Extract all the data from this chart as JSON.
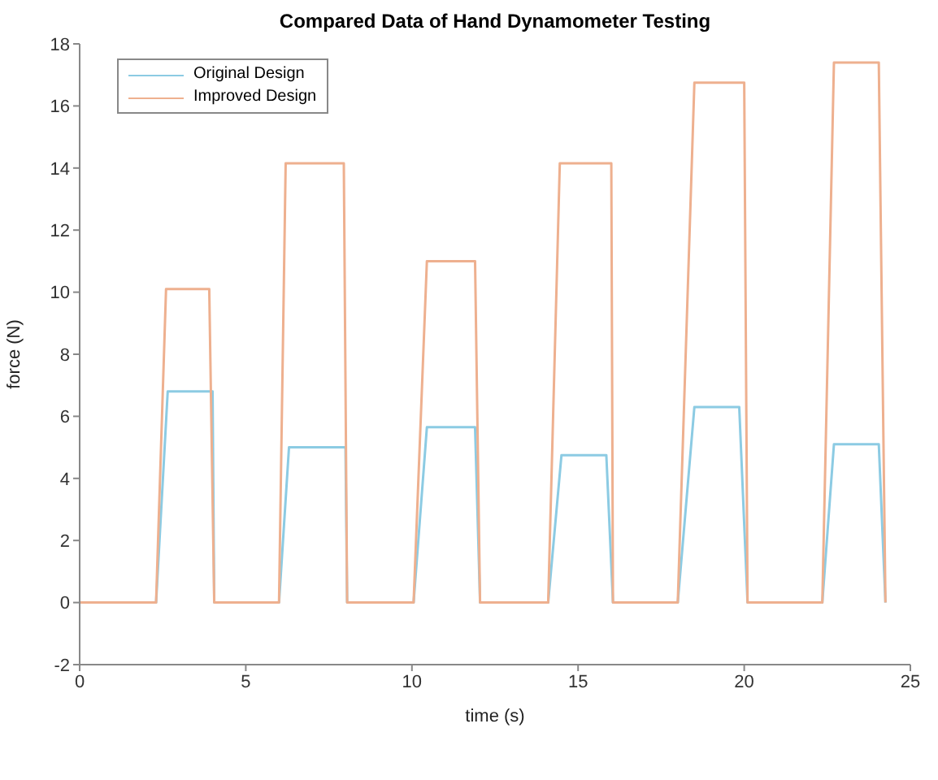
{
  "chart_data": {
    "type": "line",
    "title": "Compared Data of Hand Dynamometer Testing",
    "xlabel": "time (s)",
    "ylabel": "force (N)",
    "xlim": [
      0,
      25
    ],
    "xticks": [
      0,
      5,
      10,
      15,
      20,
      25
    ],
    "ylim": [
      -2,
      18
    ],
    "yticks": [
      -2,
      0,
      2,
      4,
      6,
      8,
      10,
      12,
      14,
      16,
      18
    ],
    "grid": false,
    "legend": "top left",
    "series": [
      {
        "name": "Original Design",
        "color": "#8ccbe3",
        "x": [
          0,
          2.3,
          2.65,
          4.0,
          4.05,
          6.0,
          6.3,
          8.0,
          8.05,
          10.05,
          10.45,
          11.9,
          12.05,
          14.1,
          14.5,
          15.85,
          16.05,
          18.0,
          18.5,
          19.85,
          20.1,
          22.35,
          22.7,
          24.05,
          24.25
        ],
        "values": [
          0,
          0,
          6.8,
          6.8,
          0,
          0,
          5.0,
          5.0,
          0,
          0,
          5.65,
          5.65,
          0,
          0,
          4.75,
          4.75,
          0,
          0,
          6.3,
          6.3,
          0,
          0,
          5.1,
          5.1,
          0
        ]
      },
      {
        "name": "Improved Design",
        "color": "#eeb08f",
        "x": [
          0,
          2.3,
          2.6,
          3.9,
          4.05,
          6.0,
          6.2,
          7.95,
          8.05,
          10.05,
          10.45,
          11.9,
          12.05,
          14.1,
          14.45,
          16.0,
          16.05,
          18.0,
          18.5,
          20.0,
          20.1,
          22.35,
          22.7,
          24.05,
          24.25
        ],
        "values": [
          0,
          0,
          10.1,
          10.1,
          0,
          0,
          14.15,
          14.15,
          0,
          0,
          11.0,
          11.0,
          0,
          0,
          14.15,
          14.15,
          0,
          0,
          16.75,
          16.75,
          0,
          0,
          17.4,
          17.4,
          0
        ]
      }
    ]
  }
}
